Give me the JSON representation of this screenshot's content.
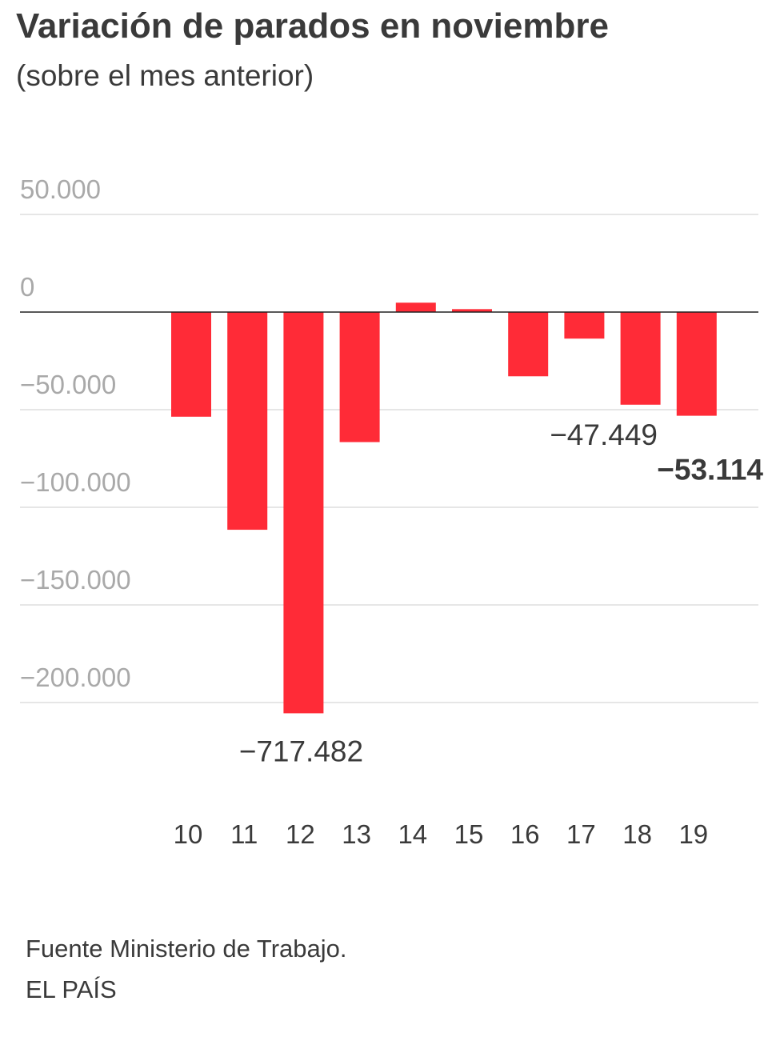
{
  "header": {
    "title": "Variación de parados en noviembre",
    "subtitle": "(sobre el mes anterior)"
  },
  "footer": {
    "source": "Fuente Ministerio de Trabajo.",
    "brand": "EL PAÍS"
  },
  "colors": {
    "bar": "#ff2b37",
    "grid": "#d6d6d6",
    "zero_line": "#222222"
  },
  "chart_data": {
    "type": "bar",
    "title": "Variación de parados en noviembre",
    "subtitle": "(sobre el mes anterior)",
    "categories": [
      "10",
      "11",
      "12",
      "13",
      "14",
      "15",
      "16",
      "17",
      "18",
      "19"
    ],
    "values": [
      -53600,
      -111500,
      -205500,
      -66600,
      4800,
      1500,
      -32900,
      -13600,
      -47449,
      -53114
    ],
    "ylim": [
      -205500,
      50000
    ],
    "yticks": [
      50000,
      0,
      -50000,
      -100000,
      -150000,
      -200000
    ],
    "ytick_labels": [
      "50.000",
      "0",
      "−50.000",
      "−100.000",
      "−150.000",
      "−200.000"
    ],
    "grid": true,
    "legend": "none",
    "annotations": [
      {
        "category": "12",
        "text": "−717.482",
        "bold": false
      },
      {
        "category": "18",
        "text": "−47.449",
        "bold": false
      },
      {
        "category": "19",
        "text": "−53.114",
        "bold": true
      }
    ]
  }
}
